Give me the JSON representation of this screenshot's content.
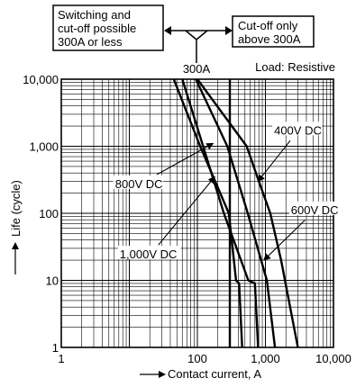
{
  "chart_data": {
    "type": "line",
    "xscale": "log",
    "yscale": "log",
    "xlim": [
      1,
      10000
    ],
    "ylim": [
      1,
      10000
    ],
    "xlabel": "Contact current, A",
    "ylabel": "Life (cycle)",
    "x_ticks": [
      {
        "value": 1,
        "label": "1"
      },
      {
        "value": 100,
        "label": "100"
      },
      {
        "value": 1000,
        "label": "1,000"
      },
      {
        "value": 10000,
        "label": "10,000"
      }
    ],
    "y_ticks": [
      {
        "value": 1,
        "label": "1"
      },
      {
        "value": 10,
        "label": "10"
      },
      {
        "value": 100,
        "label": "100"
      },
      {
        "value": 1000,
        "label": "1,000"
      },
      {
        "value": 10000,
        "label": "10,000"
      }
    ],
    "grid": true,
    "load_label": "Load: Resistive",
    "threshold": {
      "value": 300,
      "label": "300A"
    },
    "boxes": {
      "left_lines": [
        "Switching and",
        "cut-off possible",
        "300A or less"
      ],
      "right_lines": [
        "Cut-off only",
        "above 300A"
      ]
    },
    "series": [
      {
        "name": "400V DC",
        "points": [
          [
            100,
            10000
          ],
          [
            530,
            1000
          ],
          [
            800,
            300
          ],
          [
            1180,
            100
          ],
          [
            1700,
            20
          ],
          [
            3000,
            1
          ]
        ]
      },
      {
        "name": "600V DC",
        "points": [
          [
            95,
            10000
          ],
          [
            275,
            1000
          ],
          [
            550,
            100
          ],
          [
            1050,
            10
          ],
          [
            1380,
            1
          ]
        ]
      },
      {
        "name": "800V DC",
        "points": [
          [
            60,
            10000
          ],
          [
            245,
            100
          ],
          [
            560,
            10
          ],
          [
            700,
            9
          ],
          [
            780,
            1
          ]
        ]
      },
      {
        "name": "1,000V DC",
        "points": [
          [
            45,
            10000
          ],
          [
            110,
            1000
          ],
          [
            290,
            100
          ],
          [
            370,
            10
          ],
          [
            410,
            9
          ],
          [
            455,
            1
          ]
        ]
      }
    ],
    "series_labels": [
      {
        "series": "400V DC",
        "text": "400V DC",
        "label_at": [
          1300,
          1700
        ],
        "arrow_to": [
          780,
          300
        ]
      },
      {
        "series": "600V DC",
        "text": "600V DC",
        "label_at": [
          2300,
          110
        ],
        "arrow_to": [
          950,
          20
        ]
      },
      {
        "series": "800V DC",
        "text": "800V DC",
        "label_at": [
          6,
          270
        ],
        "arrow_to": [
          170,
          1100
        ]
      },
      {
        "series": "1,000V DC",
        "text": "1,000V DC",
        "label_at": [
          7,
          24
        ],
        "arrow_to": [
          180,
          350
        ]
      }
    ]
  }
}
